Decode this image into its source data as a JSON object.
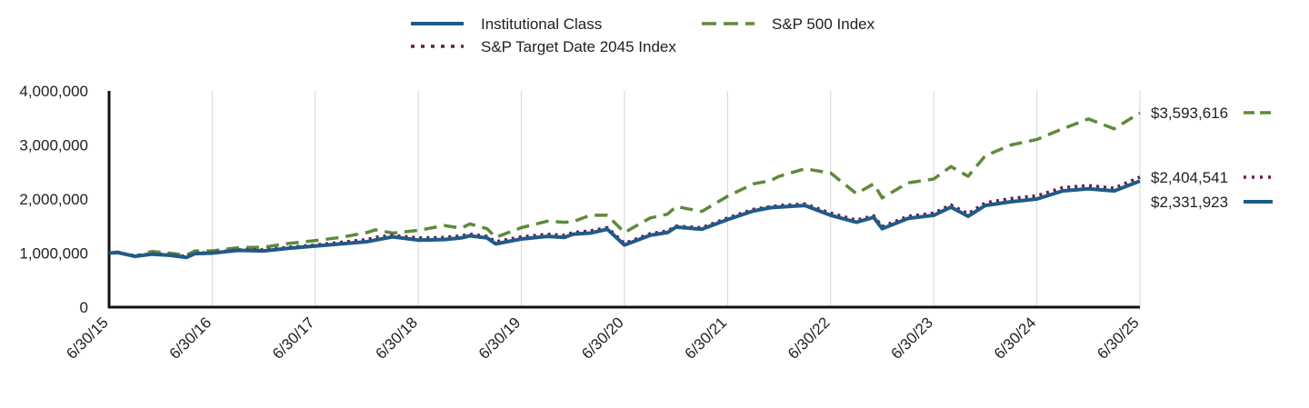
{
  "chart_data": {
    "type": "line",
    "title": "",
    "xlabel": "",
    "ylabel": "",
    "ylim": [
      0,
      4000000
    ],
    "yticks": [
      0,
      1000000,
      2000000,
      3000000,
      4000000
    ],
    "ytick_labels": [
      "0",
      "1,000,000",
      "2,000,000",
      "3,000,000",
      "4,000,000"
    ],
    "xlim": [
      2015.5,
      2025.5
    ],
    "xticks": [
      2015.5,
      2016.5,
      2017.5,
      2018.5,
      2019.5,
      2020.5,
      2021.5,
      2022.5,
      2023.5,
      2024.5,
      2025.5
    ],
    "xtick_labels": [
      "6/30/15",
      "6/30/16",
      "6/30/17",
      "6/30/18",
      "6/30/19",
      "6/30/20",
      "6/30/21",
      "6/30/22",
      "6/30/23",
      "6/30/24",
      "6/30/25"
    ],
    "grid": "vertical",
    "legend_position": "top",
    "series": [
      {
        "name": "Institutional Class",
        "color": "#1f5b87",
        "style": "solid",
        "end_label": "$2,331,923",
        "x": [
          2015.5,
          2015.583,
          2015.75,
          2015.917,
          2016.083,
          2016.25,
          2016.333,
          2016.5,
          2016.75,
          2017.0,
          2017.25,
          2017.5,
          2017.75,
          2018.0,
          2018.083,
          2018.25,
          2018.5,
          2018.75,
          2018.917,
          2019.0,
          2019.167,
          2019.25,
          2019.5,
          2019.75,
          2019.917,
          2020.0,
          2020.167,
          2020.333,
          2020.5,
          2020.75,
          2020.917,
          2021.0,
          2021.25,
          2021.5,
          2021.75,
          2021.917,
          2022.0,
          2022.25,
          2022.5,
          2022.75,
          2022.917,
          2023.0,
          2023.25,
          2023.5,
          2023.667,
          2023.833,
          2024.0,
          2024.25,
          2024.5,
          2024.75,
          2025.0,
          2025.25,
          2025.5
        ],
        "values": [
          1000000,
          1010000,
          940000,
          980000,
          960000,
          920000,
          990000,
          1000000,
          1050000,
          1040000,
          1090000,
          1130000,
          1170000,
          1210000,
          1240000,
          1300000,
          1240000,
          1250000,
          1280000,
          1320000,
          1280000,
          1170000,
          1260000,
          1310000,
          1290000,
          1350000,
          1370000,
          1440000,
          1150000,
          1330000,
          1380000,
          1480000,
          1440000,
          1620000,
          1780000,
          1840000,
          1850000,
          1880000,
          1700000,
          1570000,
          1660000,
          1450000,
          1640000,
          1700000,
          1850000,
          1680000,
          1880000,
          1950000,
          2000000,
          2150000,
          2190000,
          2150000,
          2331923
        ]
      },
      {
        "name": "S&P 500 Index",
        "color": "#5e8a3a",
        "style": "dashed",
        "end_label": "$3,593,616",
        "x": [
          2015.5,
          2015.583,
          2015.75,
          2015.917,
          2016.083,
          2016.25,
          2016.333,
          2016.5,
          2016.75,
          2017.0,
          2017.25,
          2017.5,
          2017.75,
          2018.0,
          2018.083,
          2018.25,
          2018.5,
          2018.75,
          2018.917,
          2019.0,
          2019.167,
          2019.25,
          2019.5,
          2019.75,
          2019.917,
          2020.0,
          2020.167,
          2020.333,
          2020.5,
          2020.75,
          2020.917,
          2021.0,
          2021.25,
          2021.5,
          2021.75,
          2021.917,
          2022.0,
          2022.25,
          2022.5,
          2022.75,
          2022.917,
          2023.0,
          2023.25,
          2023.5,
          2023.667,
          2023.833,
          2024.0,
          2024.25,
          2024.5,
          2024.75,
          2025.0,
          2025.25,
          2025.5
        ],
        "values": [
          1000000,
          1020000,
          940000,
          1030000,
          1000000,
          960000,
          1040000,
          1040000,
          1100000,
          1110000,
          1180000,
          1230000,
          1290000,
          1380000,
          1430000,
          1370000,
          1420000,
          1510000,
          1460000,
          1540000,
          1450000,
          1290000,
          1470000,
          1590000,
          1570000,
          1580000,
          1700000,
          1700000,
          1380000,
          1650000,
          1720000,
          1860000,
          1770000,
          2050000,
          2280000,
          2340000,
          2420000,
          2560000,
          2480000,
          2100000,
          2280000,
          2020000,
          2300000,
          2370000,
          2600000,
          2420000,
          2800000,
          3000000,
          3100000,
          3300000,
          3480000,
          3300000,
          3593616
        ]
      },
      {
        "name": "S&P Target Date 2045 Index",
        "color": "#6a1b4d",
        "style": "dotted",
        "end_label": "$2,404,541",
        "x": [
          2015.5,
          2015.583,
          2015.75,
          2015.917,
          2016.083,
          2016.25,
          2016.333,
          2016.5,
          2016.75,
          2017.0,
          2017.25,
          2017.5,
          2017.75,
          2018.0,
          2018.083,
          2018.25,
          2018.5,
          2018.75,
          2018.917,
          2019.0,
          2019.167,
          2019.25,
          2019.5,
          2019.75,
          2019.917,
          2020.0,
          2020.167,
          2020.333,
          2020.5,
          2020.75,
          2020.917,
          2021.0,
          2021.25,
          2021.5,
          2021.75,
          2021.917,
          2022.0,
          2022.25,
          2022.5,
          2022.75,
          2022.917,
          2023.0,
          2023.25,
          2023.5,
          2023.667,
          2023.833,
          2024.0,
          2024.25,
          2024.5,
          2024.75,
          2025.0,
          2025.25,
          2025.5
        ],
        "values": [
          1000000,
          1015000,
          950000,
          990000,
          970000,
          940000,
          1000000,
          1010000,
          1060000,
          1060000,
          1110000,
          1150000,
          1200000,
          1250000,
          1290000,
          1330000,
          1280000,
          1290000,
          1320000,
          1350000,
          1310000,
          1210000,
          1300000,
          1350000,
          1330000,
          1380000,
          1410000,
          1470000,
          1180000,
          1360000,
          1410000,
          1500000,
          1470000,
          1650000,
          1810000,
          1860000,
          1880000,
          1910000,
          1740000,
          1610000,
          1690000,
          1490000,
          1680000,
          1740000,
          1890000,
          1730000,
          1930000,
          2010000,
          2060000,
          2210000,
          2250000,
          2200000,
          2404541
        ]
      }
    ]
  }
}
